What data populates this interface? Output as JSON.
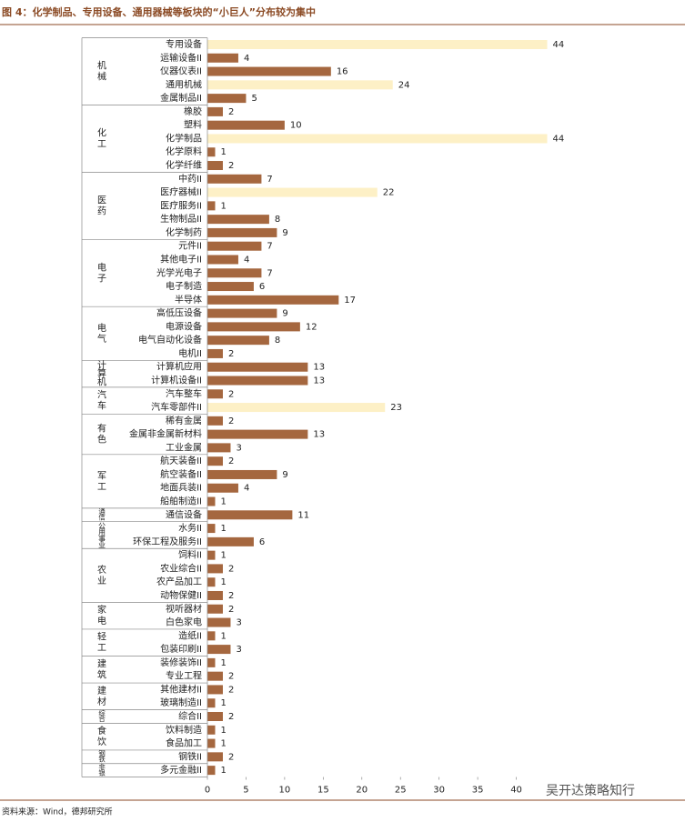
{
  "chart_data": {
    "type": "grouped-hbar",
    "title": "图 4：化学制品、专用设备、通用器械等板块的“小巨人”分布较为集中",
    "source": "资料来源：Wind，德邦研究所",
    "watermark": "吴开达策略知行",
    "color": "#a5673f",
    "highlight_color": "#fdf0c6",
    "xlim": [
      0,
      45
    ],
    "xticks": [
      0,
      5,
      10,
      15,
      20,
      25,
      30,
      35,
      40
    ],
    "groups": [
      {
        "name": "机械",
        "categories": [
          "专用设备",
          "运输设备II",
          "仪器仪表II",
          "通用机械",
          "金属制品II"
        ],
        "values": [
          44,
          4,
          16,
          24,
          5
        ],
        "highlight": [
          true,
          false,
          false,
          true,
          false
        ]
      },
      {
        "name": "化工",
        "categories": [
          "橡胶",
          "塑料",
          "化学制品",
          "化学原料",
          "化学纤维"
        ],
        "values": [
          2,
          10,
          44,
          1,
          2
        ],
        "highlight": [
          false,
          false,
          true,
          false,
          false
        ]
      },
      {
        "name": "医药",
        "categories": [
          "中药II",
          "医疗器械II",
          "医疗服务II",
          "生物制品II",
          "化学制药"
        ],
        "values": [
          7,
          22,
          1,
          8,
          9
        ],
        "highlight": [
          false,
          true,
          false,
          false,
          false
        ]
      },
      {
        "name": "电子",
        "categories": [
          "元件II",
          "其他电子II",
          "光学光电子",
          "电子制造",
          "半导体"
        ],
        "values": [
          7,
          4,
          7,
          6,
          17
        ],
        "highlight": [
          false,
          false,
          false,
          false,
          false
        ]
      },
      {
        "name": "电气",
        "categories": [
          "高低压设备",
          "电源设备",
          "电气自动化设备",
          "电机II"
        ],
        "values": [
          9,
          12,
          8,
          2
        ],
        "highlight": [
          false,
          false,
          false,
          false
        ]
      },
      {
        "name": "计算机",
        "categories": [
          "计算机应用",
          "计算机设备II"
        ],
        "values": [
          13,
          13
        ],
        "highlight": [
          false,
          false
        ]
      },
      {
        "name": "汽车",
        "categories": [
          "汽车整车",
          "汽车零部件II"
        ],
        "values": [
          2,
          23
        ],
        "highlight": [
          false,
          true
        ]
      },
      {
        "name": "有色",
        "categories": [
          "稀有金属",
          "金属非金属新材料",
          "工业金属"
        ],
        "values": [
          2,
          13,
          3
        ],
        "highlight": [
          false,
          false,
          false
        ]
      },
      {
        "name": "军工",
        "categories": [
          "航天装备II",
          "航空装备II",
          "地面兵装II",
          "船舶制造II"
        ],
        "values": [
          2,
          9,
          4,
          1
        ],
        "highlight": [
          false,
          false,
          false,
          false
        ]
      },
      {
        "name": "通信",
        "categories": [
          "通信设备"
        ],
        "values": [
          11
        ],
        "highlight": [
          false
        ]
      },
      {
        "name": "公用事业",
        "categories": [
          "水务II",
          "环保工程及服务II"
        ],
        "values": [
          1,
          6
        ],
        "highlight": [
          false,
          false
        ]
      },
      {
        "name": "农业",
        "categories": [
          "饲料II",
          "农业综合II",
          "农产品加工",
          "动物保健II"
        ],
        "values": [
          1,
          2,
          1,
          2
        ],
        "highlight": [
          false,
          false,
          false,
          false
        ]
      },
      {
        "name": "家电",
        "categories": [
          "视听器材",
          "白色家电"
        ],
        "values": [
          2,
          3
        ],
        "highlight": [
          false,
          false
        ]
      },
      {
        "name": "轻工",
        "categories": [
          "造纸II",
          "包装印刷II"
        ],
        "values": [
          1,
          3
        ],
        "highlight": [
          false,
          false
        ]
      },
      {
        "name": "建筑",
        "categories": [
          "装修装饰II",
          "专业工程"
        ],
        "values": [
          1,
          2
        ],
        "highlight": [
          false,
          false
        ]
      },
      {
        "name": "建材",
        "categories": [
          "其他建材II",
          "玻璃制造II"
        ],
        "values": [
          2,
          1
        ],
        "highlight": [
          false,
          false
        ]
      },
      {
        "name": "综合",
        "categories": [
          "综合II"
        ],
        "values": [
          2
        ],
        "highlight": [
          false
        ]
      },
      {
        "name": "食饮",
        "categories": [
          "饮料制造",
          "食品加工"
        ],
        "values": [
          1,
          1
        ],
        "highlight": [
          false,
          false
        ]
      },
      {
        "name": "钢铁",
        "categories": [
          "钢铁II"
        ],
        "values": [
          2
        ],
        "highlight": [
          false
        ]
      },
      {
        "name": "非银",
        "categories": [
          "多元金融II"
        ],
        "values": [
          1
        ],
        "highlight": [
          false
        ]
      }
    ]
  }
}
